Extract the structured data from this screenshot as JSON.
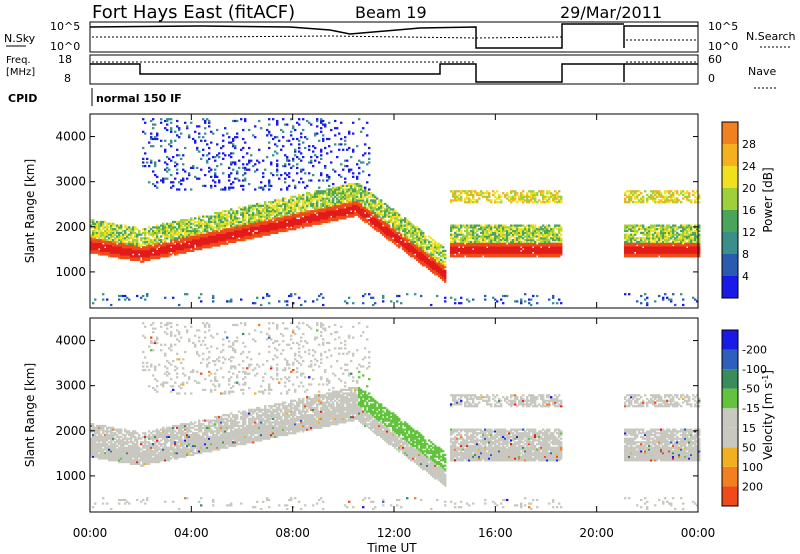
{
  "header": {
    "station": "Fort Hays East (fitACF)",
    "beam": "Beam 19",
    "date": "29/Mar/2011"
  },
  "strip_labels": {
    "nsky": "N.Sky",
    "nsky_ticks": [
      "10^5",
      "10^0"
    ],
    "nsearch": "N.Search",
    "nsearch_ticks": [
      "10^5",
      "10^0"
    ],
    "freq": [
      "Freq.",
      "[MHz]"
    ],
    "freq_ticks": [
      "18",
      "8"
    ],
    "nave": "Nave",
    "nave_ticks": [
      "60",
      "0"
    ],
    "cpid": "CPID",
    "mode": "normal 150 IF"
  },
  "colors": {
    "power_scale": [
      "#1a1ae6",
      "#2a5bb0",
      "#3b8f8a",
      "#4aa45a",
      "#9fcf3a",
      "#f0e020",
      "#f5b020",
      "#f08020",
      "#ee4a1a",
      "#e21a1a"
    ],
    "velocity_scale": [
      "#1a1ae6",
      "#2f5fbd",
      "#3a8c5a",
      "#63c23e",
      "#c8c8c0",
      "#c8c8c0",
      "#f0b020",
      "#f08020",
      "#ee4a1a",
      "#e21a1a"
    ]
  },
  "chart_data": [
    {
      "type": "heatmap",
      "name": "power",
      "ylabel": "Slant Range [km]",
      "yticks": [
        "1000",
        "2000",
        "3000",
        "4000"
      ],
      "ylim": [
        200,
        4500
      ],
      "xlim": [
        0,
        24
      ],
      "colorbar_label": "Power [dB]",
      "colorbar_ticks": [
        "4",
        "8",
        "12",
        "16",
        "20",
        "24",
        "28"
      ],
      "colorbar_range": [
        0,
        32
      ]
    },
    {
      "type": "heatmap",
      "name": "velocity",
      "ylabel": "Slant Range [km]",
      "yticks": [
        "1000",
        "2000",
        "3000",
        "4000"
      ],
      "ylim": [
        200,
        4500
      ],
      "xlim": [
        0,
        24
      ],
      "xticks": [
        "00:00",
        "04:00",
        "08:00",
        "12:00",
        "16:00",
        "20:00",
        "00:00"
      ],
      "xlabel": "Time UT",
      "colorbar_label": "Velocity [m s",
      "colorbar_label_sup": "-1",
      "colorbar_ticks": [
        "200",
        "100",
        "50",
        "15",
        "-15",
        "-50",
        "-100",
        "-200"
      ]
    }
  ]
}
